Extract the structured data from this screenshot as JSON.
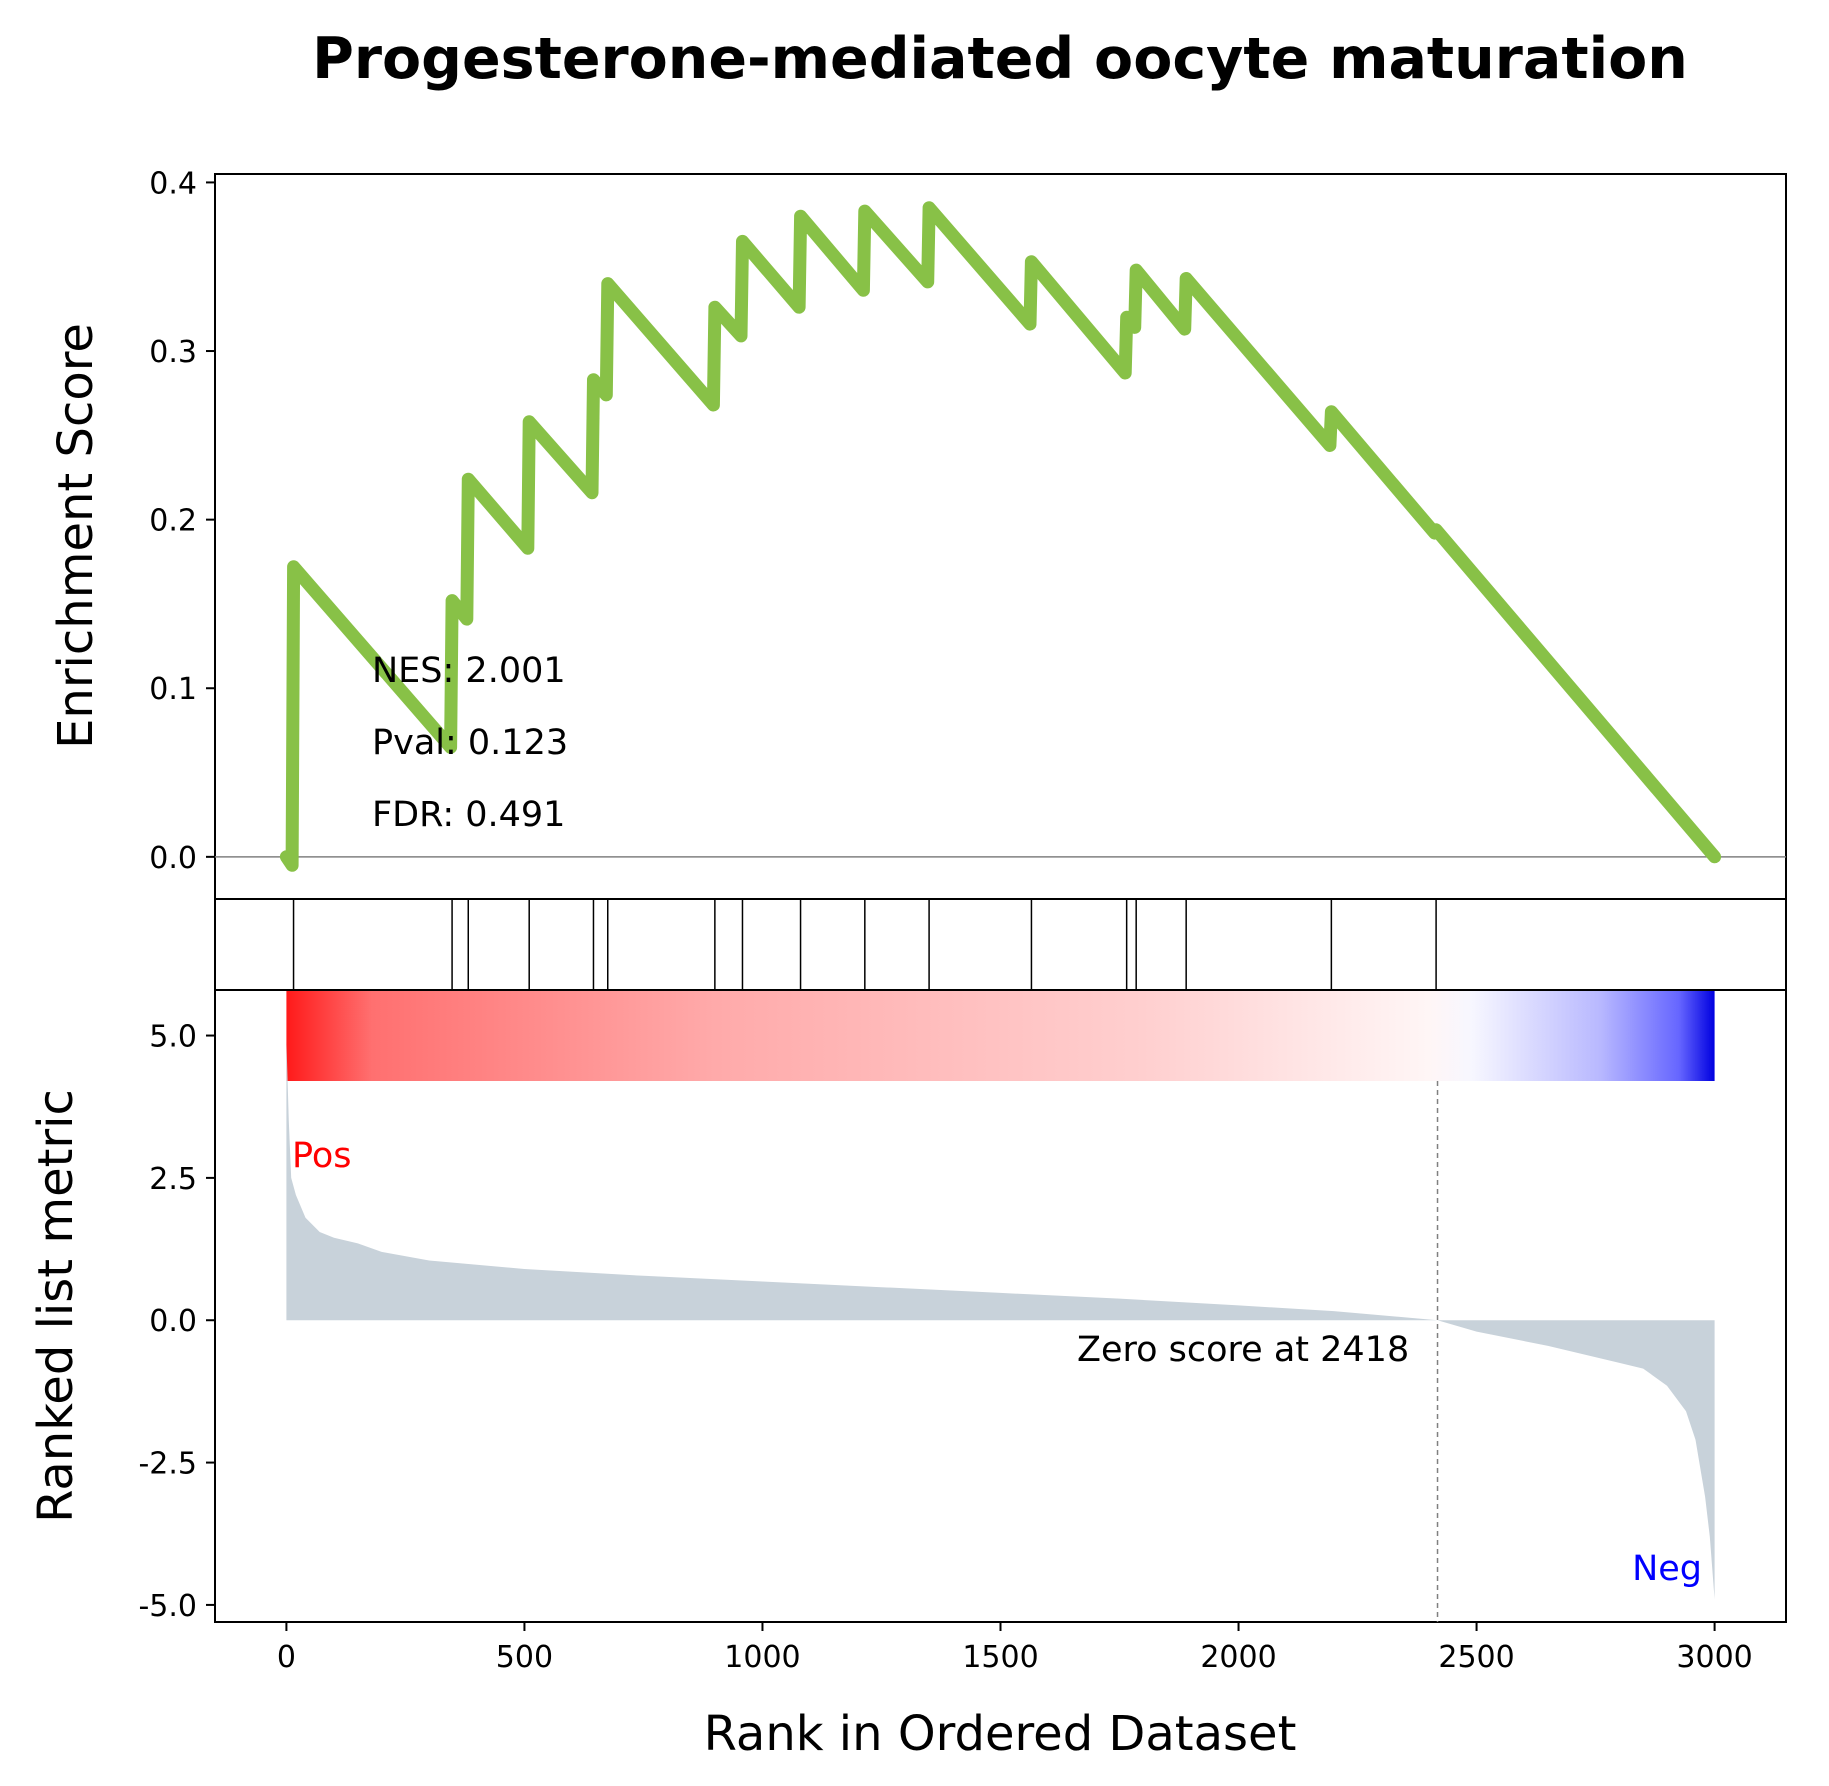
{
  "chart_data": {
    "type": "line",
    "title": "Progesterone-mediated oocyte maturation",
    "xlabel": "Rank in Ordered Dataset",
    "es_ylabel": "Enrichment Score",
    "rank_ylabel": "Ranked list metric",
    "xlim": [
      -150,
      3150
    ],
    "es_ylim": [
      -0.025,
      0.405
    ],
    "rank_ylim": [
      -5.3,
      5.8
    ],
    "x_ticks": [
      "0",
      "500",
      "1000",
      "1500",
      "2000",
      "2500",
      "3000"
    ],
    "x_tick_values": [
      0,
      500,
      1000,
      1500,
      2000,
      2500,
      3000
    ],
    "es_ticks": [
      "0.0",
      "0.1",
      "0.2",
      "0.3",
      "0.4"
    ],
    "es_tick_values": [
      0.0,
      0.1,
      0.2,
      0.3,
      0.4
    ],
    "rank_ticks": [
      "5.0",
      "2.5",
      "0.0",
      "-2.5",
      "-5.0"
    ],
    "rank_tick_values": [
      5.0,
      2.5,
      0.0,
      -2.5,
      -5.0
    ],
    "stats": {
      "nes": "NES: 2.001",
      "pval": "Pval: 0.123",
      "fdr": "FDR: 0.491"
    },
    "pos_label": "Pos",
    "neg_label": "Neg",
    "zero_label": "Zero score at 2418",
    "zero_rank": 2418,
    "n_genes": 3000,
    "hit_positions": [
      15,
      348,
      382,
      510,
      645,
      675,
      900,
      958,
      1080,
      1215,
      1350,
      1565,
      1765,
      1785,
      1890,
      2195,
      2415
    ],
    "es_curve": [
      {
        "x": 0,
        "y": 0.0
      },
      {
        "x": 12,
        "y": -0.005
      },
      {
        "x": 15,
        "y": 0.172
      },
      {
        "x": 345,
        "y": 0.065
      },
      {
        "x": 348,
        "y": 0.152
      },
      {
        "x": 379,
        "y": 0.141
      },
      {
        "x": 382,
        "y": 0.224
      },
      {
        "x": 507,
        "y": 0.183
      },
      {
        "x": 510,
        "y": 0.258
      },
      {
        "x": 642,
        "y": 0.216
      },
      {
        "x": 645,
        "y": 0.283
      },
      {
        "x": 672,
        "y": 0.274
      },
      {
        "x": 675,
        "y": 0.34
      },
      {
        "x": 897,
        "y": 0.268
      },
      {
        "x": 900,
        "y": 0.326
      },
      {
        "x": 955,
        "y": 0.309
      },
      {
        "x": 958,
        "y": 0.365
      },
      {
        "x": 1077,
        "y": 0.326
      },
      {
        "x": 1080,
        "y": 0.38
      },
      {
        "x": 1212,
        "y": 0.336
      },
      {
        "x": 1215,
        "y": 0.383
      },
      {
        "x": 1347,
        "y": 0.341
      },
      {
        "x": 1350,
        "y": 0.385
      },
      {
        "x": 1562,
        "y": 0.316
      },
      {
        "x": 1565,
        "y": 0.353
      },
      {
        "x": 1762,
        "y": 0.287
      },
      {
        "x": 1765,
        "y": 0.32
      },
      {
        "x": 1782,
        "y": 0.314
      },
      {
        "x": 1785,
        "y": 0.348
      },
      {
        "x": 1887,
        "y": 0.313
      },
      {
        "x": 1890,
        "y": 0.343
      },
      {
        "x": 2192,
        "y": 0.244
      },
      {
        "x": 2195,
        "y": 0.264
      },
      {
        "x": 2412,
        "y": 0.192
      },
      {
        "x": 2415,
        "y": 0.194
      },
      {
        "x": 3000,
        "y": 0.0
      }
    ],
    "rank_metric": [
      {
        "x": 0,
        "y": 4.9
      },
      {
        "x": 5,
        "y": 3.5
      },
      {
        "x": 10,
        "y": 2.5
      },
      {
        "x": 20,
        "y": 2.2
      },
      {
        "x": 40,
        "y": 1.8
      },
      {
        "x": 70,
        "y": 1.55
      },
      {
        "x": 100,
        "y": 1.45
      },
      {
        "x": 150,
        "y": 1.35
      },
      {
        "x": 200,
        "y": 1.2
      },
      {
        "x": 300,
        "y": 1.05
      },
      {
        "x": 500,
        "y": 0.9
      },
      {
        "x": 750,
        "y": 0.78
      },
      {
        "x": 1000,
        "y": 0.68
      },
      {
        "x": 1250,
        "y": 0.58
      },
      {
        "x": 1500,
        "y": 0.48
      },
      {
        "x": 1750,
        "y": 0.38
      },
      {
        "x": 2000,
        "y": 0.26
      },
      {
        "x": 2200,
        "y": 0.16
      },
      {
        "x": 2418,
        "y": 0.0
      },
      {
        "x": 2500,
        "y": -0.2
      },
      {
        "x": 2650,
        "y": -0.45
      },
      {
        "x": 2800,
        "y": -0.75
      },
      {
        "x": 2850,
        "y": -0.85
      },
      {
        "x": 2900,
        "y": -1.15
      },
      {
        "x": 2940,
        "y": -1.6
      },
      {
        "x": 2960,
        "y": -2.1
      },
      {
        "x": 2980,
        "y": -3.1
      },
      {
        "x": 2990,
        "y": -3.8
      },
      {
        "x": 3000,
        "y": -4.9
      }
    ],
    "colors": {
      "es_line": "#88c147",
      "rank_fill": "#c8d2da",
      "hit_line": "#000000",
      "pos": "#ff0000",
      "neg": "#0000ff",
      "zero_line": "#808080"
    }
  }
}
